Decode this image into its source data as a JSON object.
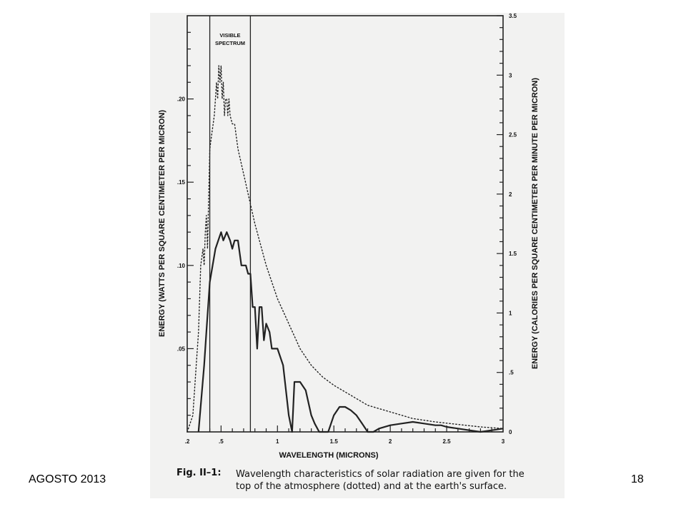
{
  "slide": {
    "footer_left": "AGOSTO 2013",
    "page_number": "18"
  },
  "caption": {
    "label": "Fig. II–1:",
    "text": "Wavelength characteristics of solar radiation are given for the top of the atmosphere (dotted) and at the earth's surface."
  },
  "chart_data": {
    "type": "line",
    "title": "",
    "xlabel": "WAVELENGTH (MICRONS)",
    "ylabel": "ENERGY (WATTS PER SQUARE CENTIMETER PER MICRON)",
    "ylabel_right": "ENERGY (CALORIES PER SQUARE CENTIMETER PER MINUTE PER MICRON)",
    "xlim": [
      0.2,
      3.0
    ],
    "ylim": [
      0,
      0.25
    ],
    "ylim_right": [
      0,
      3.5
    ],
    "x_ticks": [
      0.2,
      0.5,
      1.0,
      1.5,
      2.0,
      2.5,
      3.0
    ],
    "x_tick_labels": [
      ".2",
      ".5",
      "1",
      "1.5",
      "2",
      "2.5",
      "3"
    ],
    "y_ticks": [
      0.05,
      0.1,
      0.15,
      0.2
    ],
    "y_tick_labels": [
      ".05",
      ".10",
      ".15",
      ".20"
    ],
    "y_right_ticks": [
      0,
      0.5,
      1,
      1.5,
      2,
      2.5,
      3,
      3.5
    ],
    "y_right_tick_labels": [
      "0",
      ".5",
      "1",
      "1.5",
      "2",
      "2.5",
      "3",
      "3.5"
    ],
    "grid": false,
    "band": {
      "label_line1": "VISIBLE",
      "label_line2": "SPECTRUM",
      "x_start": 0.4,
      "x_end": 0.76
    },
    "series": [
      {
        "style": "dotted",
        "x": [
          0.2,
          0.25,
          0.28,
          0.3,
          0.32,
          0.34,
          0.35,
          0.36,
          0.37,
          0.38,
          0.39,
          0.4,
          0.42,
          0.44,
          0.45,
          0.46,
          0.47,
          0.48,
          0.49,
          0.5,
          0.51,
          0.52,
          0.53,
          0.54,
          0.55,
          0.56,
          0.57,
          0.58,
          0.6,
          0.62,
          0.65,
          0.7,
          0.75,
          0.8,
          0.9,
          1.0,
          1.1,
          1.2,
          1.3,
          1.4,
          1.5,
          1.6,
          1.8,
          2.0,
          2.2,
          2.4,
          2.6,
          2.8,
          3.0
        ],
        "y": [
          0.0,
          0.01,
          0.04,
          0.06,
          0.1,
          0.11,
          0.1,
          0.12,
          0.13,
          0.11,
          0.14,
          0.17,
          0.18,
          0.19,
          0.2,
          0.21,
          0.2,
          0.22,
          0.21,
          0.22,
          0.2,
          0.21,
          0.19,
          0.2,
          0.2,
          0.19,
          0.2,
          0.19,
          0.185,
          0.185,
          0.17,
          0.155,
          0.14,
          0.125,
          0.1,
          0.08,
          0.065,
          0.05,
          0.04,
          0.033,
          0.028,
          0.024,
          0.016,
          0.012,
          0.008,
          0.006,
          0.0045,
          0.003,
          0.002
        ]
      },
      {
        "style": "solid",
        "x": [
          0.3,
          0.35,
          0.37,
          0.4,
          0.45,
          0.5,
          0.52,
          0.55,
          0.58,
          0.6,
          0.62,
          0.65,
          0.68,
          0.7,
          0.72,
          0.74,
          0.76,
          0.78,
          0.8,
          0.82,
          0.84,
          0.86,
          0.88,
          0.9,
          0.93,
          0.95,
          1.0,
          1.05,
          1.1,
          1.13,
          1.15,
          1.2,
          1.25,
          1.3,
          1.33,
          1.37,
          1.4,
          1.45,
          1.5,
          1.55,
          1.6,
          1.65,
          1.7,
          1.75,
          1.8,
          1.85,
          1.9,
          2.0,
          2.1,
          2.2,
          2.3,
          2.4,
          2.45,
          2.5,
          2.6,
          2.7,
          2.8,
          2.9,
          3.0
        ],
        "y": [
          0.0,
          0.04,
          0.06,
          0.09,
          0.11,
          0.12,
          0.115,
          0.12,
          0.115,
          0.11,
          0.115,
          0.115,
          0.1,
          0.1,
          0.1,
          0.095,
          0.095,
          0.075,
          0.075,
          0.05,
          0.075,
          0.075,
          0.055,
          0.065,
          0.06,
          0.05,
          0.05,
          0.04,
          0.01,
          0.0,
          0.03,
          0.03,
          0.025,
          0.01,
          0.005,
          0.0,
          0.0,
          0.0,
          0.01,
          0.015,
          0.015,
          0.013,
          0.01,
          0.005,
          0.0,
          0.0,
          0.002,
          0.004,
          0.005,
          0.006,
          0.005,
          0.004,
          0.004,
          0.003,
          0.002,
          0.001,
          0.0,
          0.001,
          0.002
        ]
      }
    ]
  }
}
